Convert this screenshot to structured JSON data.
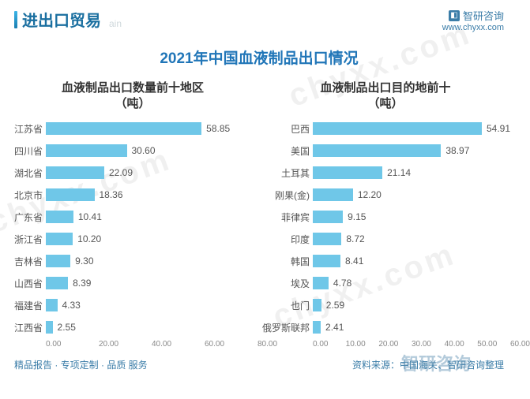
{
  "header": {
    "title": "进出口贸易",
    "subtitle": "ain",
    "brand": "智研咨询",
    "url": "www.chyxx.com"
  },
  "main_title": "2021年中国血液制品出口情况",
  "chart_left": {
    "title_line1": "血液制品出口数量前十地区",
    "title_line2": "（吨）",
    "type": "horizontal-bar",
    "bar_color": "#6fc7e8",
    "cat_label_width": 48,
    "max_value": 80,
    "categories": [
      "江苏省",
      "四川省",
      "湖北省",
      "北京市",
      "广东省",
      "浙江省",
      "吉林省",
      "山西省",
      "福建省",
      "江西省"
    ],
    "values": [
      58.85,
      30.6,
      22.09,
      18.36,
      10.41,
      10.2,
      9.3,
      8.39,
      4.33,
      2.55
    ],
    "labels": [
      "58.85",
      "30.60",
      "22.09",
      "18.36",
      "10.41",
      "10.20",
      "9.30",
      "8.39",
      "4.33",
      "2.55"
    ],
    "ticks": [
      "0.00",
      "20.00",
      "40.00",
      "60.00",
      "80.00"
    ]
  },
  "chart_right": {
    "title_line1": "血液制品出口目的地前十",
    "title_line2": "（吨）",
    "type": "horizontal-bar",
    "bar_color": "#6fc7e8",
    "cat_label_width": 66,
    "max_value": 60,
    "categories": [
      "巴西",
      "美国",
      "土耳其",
      "刚果(金)",
      "菲律宾",
      "印度",
      "韩国",
      "埃及",
      "也门",
      "俄罗斯联邦"
    ],
    "values": [
      54.91,
      38.97,
      21.14,
      12.2,
      9.15,
      8.72,
      8.41,
      4.78,
      2.59,
      2.41
    ],
    "labels": [
      "54.91",
      "38.97",
      "21.14",
      "12.20",
      "9.15",
      "8.72",
      "8.41",
      "4.78",
      "2.59",
      "2.41"
    ],
    "ticks": [
      "0.00",
      "10.00",
      "20.00",
      "30.00",
      "40.00",
      "50.00",
      "60.00"
    ]
  },
  "footer": {
    "left": "精品报告 · 专项定制 · 品质 服务",
    "right": "资料来源：中国海关、智研咨询整理",
    "watermark_label": "智研咨询"
  }
}
